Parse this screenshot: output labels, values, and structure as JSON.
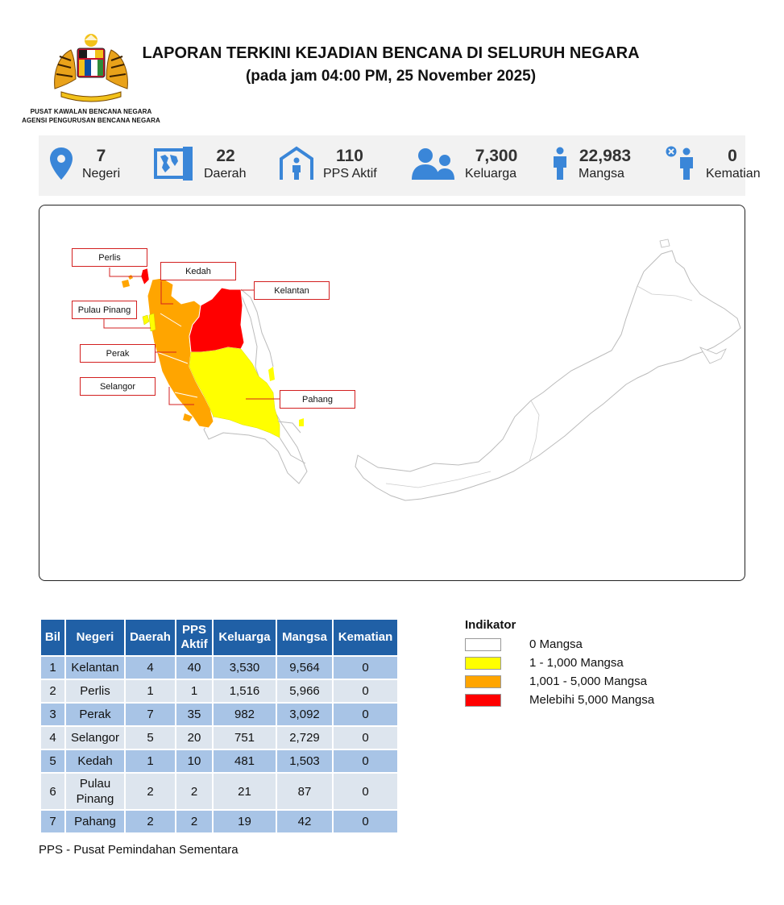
{
  "header": {
    "agency_line1": "PUSAT KAWALAN BENCANA NEGARA",
    "agency_line2": "AGENSI PENGURUSAN BENCANA NEGARA",
    "title": "LAPORAN TERKINI KEJADIAN BENCANA DI SELURUH NEGARA",
    "subtitle": "(pada jam 04:00 PM, 25 November 2025)"
  },
  "stats": [
    {
      "icon": "map-pin-icon",
      "value": "7",
      "label": "Negeri"
    },
    {
      "icon": "district-map-icon",
      "value": "22",
      "label": "Daerah"
    },
    {
      "icon": "shelter-icon",
      "value": "110",
      "label": "PPS Aktif"
    },
    {
      "icon": "family-icon",
      "value": "7,300",
      "label": "Keluarga"
    },
    {
      "icon": "person-icon",
      "value": "22,983",
      "label": "Mangsa"
    },
    {
      "icon": "death-icon",
      "value": "0",
      "label": "Kematian"
    }
  ],
  "map": {
    "labels": {
      "perlis": "Perlis",
      "kedah": "Kedah",
      "kelantan": "Kelantan",
      "pulau_pinang": "Pulau Pinang",
      "perak": "Perak",
      "selangor": "Selangor",
      "pahang": "Pahang"
    },
    "colors": {
      "none": "#ffffff",
      "low": "#ffff00",
      "mid": "#ffa500",
      "high": "#ff0000"
    }
  },
  "table": {
    "headers": {
      "bil": "Bil",
      "negeri": "Negeri",
      "daerah": "Daerah",
      "pps_line1": "PPS",
      "pps_line2": "Aktif",
      "keluarga": "Keluarga",
      "mangsa": "Mangsa",
      "kematian": "Kematian"
    },
    "rows": [
      {
        "bil": "1",
        "negeri": "Kelantan",
        "daerah": "4",
        "pps": "40",
        "keluarga": "3,530",
        "mangsa": "9,564",
        "kematian": "0"
      },
      {
        "bil": "2",
        "negeri": "Perlis",
        "daerah": "1",
        "pps": "1",
        "keluarga": "1,516",
        "mangsa": "5,966",
        "kematian": "0"
      },
      {
        "bil": "3",
        "negeri": "Perak",
        "daerah": "7",
        "pps": "35",
        "keluarga": "982",
        "mangsa": "3,092",
        "kematian": "0"
      },
      {
        "bil": "4",
        "negeri": "Selangor",
        "daerah": "5",
        "pps": "20",
        "keluarga": "751",
        "mangsa": "2,729",
        "kematian": "0"
      },
      {
        "bil": "5",
        "negeri": "Kedah",
        "daerah": "1",
        "pps": "10",
        "keluarga": "481",
        "mangsa": "1,503",
        "kematian": "0"
      },
      {
        "bil": "6",
        "negeri": "Pulau",
        "negeri2": "Pinang",
        "daerah": "2",
        "pps": "2",
        "keluarga": "21",
        "mangsa": "87",
        "kematian": "0"
      },
      {
        "bil": "7",
        "negeri": "Pahang",
        "daerah": "2",
        "pps": "2",
        "keluarga": "19",
        "mangsa": "42",
        "kematian": "0"
      }
    ],
    "note": "PPS - Pusat Pemindahan Sementara"
  },
  "legend": {
    "title": "Indikator",
    "items": [
      {
        "label": "0 Mangsa",
        "color": "#ffffff"
      },
      {
        "label": "1 - 1,000 Mangsa",
        "color": "#ffff00"
      },
      {
        "label": "1,001 - 5,000 Mangsa",
        "color": "#ffa500"
      },
      {
        "label": "Melebihi 5,000 Mangsa",
        "color": "#ff0000"
      }
    ]
  }
}
